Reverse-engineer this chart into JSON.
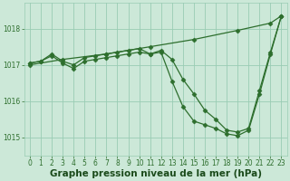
{
  "xlabel": "Graphe pression niveau de la mer (hPa)",
  "background_color": "#cce8d8",
  "grid_color": "#99ccb4",
  "line_color": "#2d6e2d",
  "xlim": [
    -0.5,
    23.5
  ],
  "ylim": [
    1014.5,
    1018.7
  ],
  "yticks": [
    1015,
    1016,
    1017,
    1018
  ],
  "xticks": [
    0,
    1,
    2,
    3,
    4,
    5,
    6,
    7,
    8,
    9,
    10,
    11,
    12,
    13,
    14,
    15,
    16,
    17,
    18,
    19,
    20,
    21,
    22,
    23
  ],
  "series": [
    {
      "x": [
        0,
        1,
        2,
        3,
        4,
        5,
        6,
        7,
        8,
        9,
        10,
        11,
        12,
        13,
        14,
        15,
        16,
        17,
        18,
        19,
        20,
        21,
        22,
        23
      ],
      "y": [
        1017.05,
        1017.1,
        1017.3,
        1017.1,
        1017.0,
        1017.2,
        1017.25,
        1017.3,
        1017.35,
        1017.4,
        1017.45,
        1017.3,
        1017.4,
        1017.15,
        1016.6,
        1016.2,
        1015.75,
        1015.5,
        1015.2,
        1015.15,
        1015.25,
        1016.3,
        1017.35,
        1018.35
      ]
    },
    {
      "x": [
        0,
        1,
        2,
        3,
        4,
        5,
        6,
        7,
        8,
        9,
        10,
        11,
        12,
        13,
        14,
        15,
        16,
        17,
        18,
        19,
        20,
        21,
        22,
        23
      ],
      "y": [
        1017.05,
        1017.1,
        1017.25,
        1017.05,
        1016.9,
        1017.1,
        1017.15,
        1017.2,
        1017.25,
        1017.3,
        1017.35,
        1017.3,
        1017.35,
        1016.55,
        1015.85,
        1015.45,
        1015.35,
        1015.25,
        1015.1,
        1015.05,
        1015.2,
        1016.2,
        1017.3,
        1018.35
      ]
    },
    {
      "x": [
        0,
        3,
        7,
        11,
        15,
        19,
        22,
        23
      ],
      "y": [
        1017.0,
        1017.15,
        1017.3,
        1017.5,
        1017.7,
        1017.95,
        1018.15,
        1018.35
      ]
    }
  ],
  "figsize": [
    3.2,
    2.0
  ],
  "dpi": 100,
  "xlabel_fontsize": 7.5,
  "tick_fontsize": 5.5,
  "xlabel_fontweight": "bold",
  "xlabel_color": "#1a4a1a",
  "marker_size": 2.5,
  "linewidth": 0.9
}
